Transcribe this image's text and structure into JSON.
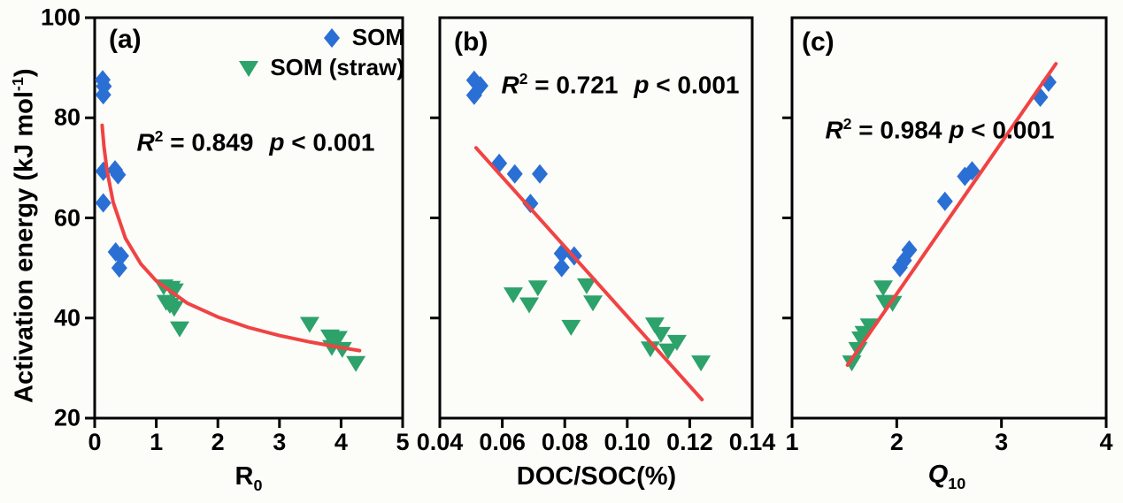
{
  "figure": {
    "y_axis_label": {
      "pre": "Activation energy (kJ mol",
      "sup": "-1",
      "post": ")"
    },
    "colors": {
      "som": "#2a6fd4",
      "som_straw": "#2da26a",
      "fit": "#f04343",
      "axis": "#000000"
    }
  },
  "legend": {
    "items": [
      {
        "label": "SOM",
        "marker": "diamond"
      },
      {
        "label": "SOM (straw)",
        "marker": "triangle-down"
      }
    ]
  },
  "chart_data": [
    {
      "id": "a",
      "type": "scatter",
      "panel_label": "(a)",
      "stats": {
        "r2_prefix": "R",
        "r2_sup": "2",
        "r2_value": "= 0.849",
        "p_prefix": "p",
        "p_value": "< 0.001"
      },
      "xlabel": {
        "main": "R",
        "sub": "0"
      },
      "xlim": [
        0,
        5
      ],
      "xticks": [
        0,
        1,
        2,
        3,
        4,
        5
      ],
      "xtick_labels": [
        "0",
        "1",
        "2",
        "3",
        "4",
        "5"
      ],
      "ylim": [
        20,
        100
      ],
      "yticks": [
        20,
        40,
        60,
        80,
        100
      ],
      "ytick_labels": [
        "20",
        "40",
        "60",
        "80",
        "100"
      ],
      "series": [
        {
          "name": "SOM",
          "marker": "diamond",
          "color_key": "som",
          "points": [
            [
              0.13,
              87.6
            ],
            [
              0.15,
              86.3
            ],
            [
              0.14,
              84.6
            ],
            [
              0.14,
              69.3
            ],
            [
              0.33,
              69.6
            ],
            [
              0.38,
              68.6
            ],
            [
              0.14,
              63.0
            ],
            [
              0.34,
              53.2
            ],
            [
              0.43,
              52.4
            ],
            [
              0.4,
              50.0
            ]
          ]
        },
        {
          "name": "SOM (straw)",
          "marker": "triangle-down",
          "color_key": "som_straw",
          "points": [
            [
              1.12,
              46.3
            ],
            [
              1.24,
              46.0
            ],
            [
              1.29,
              45.5
            ],
            [
              1.16,
              43.2
            ],
            [
              1.22,
              42.6
            ],
            [
              1.29,
              42.0
            ],
            [
              1.38,
              37.9
            ],
            [
              3.49,
              38.8
            ],
            [
              3.82,
              36.3
            ],
            [
              3.95,
              36.0
            ],
            [
              3.85,
              34.2
            ],
            [
              4.02,
              33.8
            ],
            [
              4.24,
              31.0
            ]
          ]
        }
      ],
      "fit": {
        "type": "curve",
        "equation_form": "power decay",
        "points": [
          [
            0.12,
            78.5
          ],
          [
            0.15,
            74.4
          ],
          [
            0.2,
            69.5
          ],
          [
            0.3,
            63.1
          ],
          [
            0.5,
            55.9
          ],
          [
            0.75,
            50.8
          ],
          [
            1.0,
            47.4
          ],
          [
            1.5,
            43.0
          ],
          [
            2.0,
            40.2
          ],
          [
            2.5,
            38.1
          ],
          [
            3.0,
            36.5
          ],
          [
            3.5,
            35.2
          ],
          [
            4.0,
            34.1
          ],
          [
            4.3,
            33.5
          ]
        ]
      }
    },
    {
      "id": "b",
      "type": "scatter",
      "panel_label": "(b)",
      "stats": {
        "r2_prefix": "R",
        "r2_sup": "2",
        "r2_value": "= 0.721",
        "p_prefix": "p",
        "p_value": "< 0.001"
      },
      "xlabel": {
        "main": "DOC/SOC(%)",
        "sub": ""
      },
      "xlim": [
        0.04,
        0.14
      ],
      "xticks": [
        0.04,
        0.06,
        0.08,
        0.1,
        0.12,
        0.14
      ],
      "xtick_labels": [
        "0.04",
        "0.06",
        "0.08",
        "0.10",
        "0.12",
        "0.14"
      ],
      "ylim": [
        20,
        100
      ],
      "yticks": [
        40,
        60,
        80
      ],
      "ytick_labels": null,
      "series": [
        {
          "name": "SOM",
          "marker": "diamond",
          "color_key": "som",
          "points": [
            [
              0.051,
              87.5
            ],
            [
              0.053,
              86.4
            ],
            [
              0.051,
              84.5
            ],
            [
              0.059,
              70.9
            ],
            [
              0.064,
              68.8
            ],
            [
              0.072,
              68.8
            ],
            [
              0.069,
              62.9
            ],
            [
              0.079,
              52.9
            ],
            [
              0.083,
              52.4
            ],
            [
              0.079,
              50.1
            ]
          ]
        },
        {
          "name": "SOM (straw)",
          "marker": "triangle-down",
          "color_key": "som_straw",
          "points": [
            [
              0.0635,
              44.7
            ],
            [
              0.0714,
              46.1
            ],
            [
              0.0686,
              42.7
            ],
            [
              0.087,
              46.5
            ],
            [
              0.089,
              43.1
            ],
            [
              0.082,
              38.2
            ],
            [
              0.1088,
              38.7
            ],
            [
              0.1108,
              36.8
            ],
            [
              0.1074,
              33.9
            ],
            [
              0.1131,
              33.5
            ],
            [
              0.1159,
              35.2
            ],
            [
              0.1236,
              31.1
            ]
          ]
        }
      ],
      "fit": {
        "type": "line",
        "equation_form": "linear",
        "points": [
          [
            0.0516,
            74.0
          ],
          [
            0.1239,
            23.7
          ]
        ]
      }
    },
    {
      "id": "c",
      "type": "scatter",
      "panel_label": "(c)",
      "stats": {
        "r2_prefix": "R",
        "r2_sup": "2",
        "r2_value": "= 0.984",
        "p_prefix": "p",
        "p_value": "< 0.001"
      },
      "xlabel": {
        "main": "Q",
        "sub": "10"
      },
      "xlim": [
        1,
        4
      ],
      "xticks": [
        1,
        2,
        3,
        4
      ],
      "xtick_labels": [
        "1",
        "2",
        "3",
        "4"
      ],
      "ylim": [
        20,
        100
      ],
      "yticks": [
        40,
        60,
        80
      ],
      "ytick_labels": null,
      "series": [
        {
          "name": "SOM",
          "marker": "diamond",
          "color_key": "som",
          "points": [
            [
              3.45,
              87.1
            ],
            [
              3.37,
              84.1
            ],
            [
              2.72,
              69.4
            ],
            [
              2.65,
              68.3
            ],
            [
              2.46,
              63.3
            ],
            [
              2.12,
              53.6
            ],
            [
              2.07,
              51.5
            ],
            [
              2.03,
              50.1
            ]
          ]
        },
        {
          "name": "SOM (straw)",
          "marker": "triangle-down",
          "color_key": "som_straw",
          "points": [
            [
              1.87,
              46.1
            ],
            [
              1.89,
              43.2
            ],
            [
              1.96,
              43.0
            ],
            [
              1.74,
              38.5
            ],
            [
              1.69,
              37.0
            ],
            [
              1.66,
              35.9
            ],
            [
              1.63,
              33.8
            ],
            [
              1.57,
              31.1
            ]
          ]
        }
      ],
      "fit": {
        "type": "line",
        "equation_form": "linear",
        "points": [
          [
            1.53,
            30.6
          ],
          [
            3.52,
            90.8
          ]
        ]
      }
    }
  ]
}
